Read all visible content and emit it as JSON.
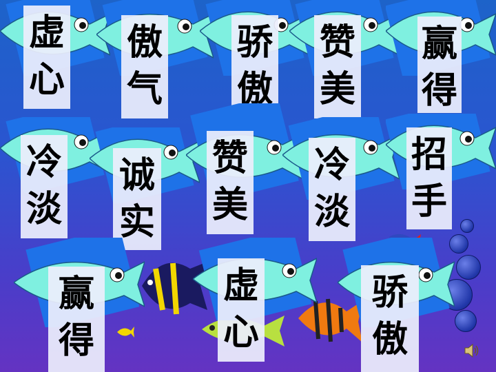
{
  "slide": {
    "cards": [
      {
        "id": "xuxin-1",
        "chars": [
          "虚",
          "心"
        ]
      },
      {
        "id": "aoqi",
        "chars": [
          "傲",
          "气"
        ]
      },
      {
        "id": "jiaoao-1",
        "chars": [
          "骄",
          "傲"
        ]
      },
      {
        "id": "zanmei-1",
        "chars": [
          "赞",
          "美"
        ]
      },
      {
        "id": "yingde-1",
        "chars": [
          "赢",
          "得"
        ]
      },
      {
        "id": "lengdan-1",
        "chars": [
          "冷",
          "淡"
        ]
      },
      {
        "id": "chengshi",
        "chars": [
          "诚",
          "实"
        ]
      },
      {
        "id": "zanmei-2",
        "chars": [
          "赞",
          "美"
        ]
      },
      {
        "id": "lengdan-2",
        "chars": [
          "冷",
          "淡"
        ]
      },
      {
        "id": "zhaoshou",
        "chars": [
          "招",
          "手"
        ]
      },
      {
        "id": "yingde-2",
        "chars": [
          "赢",
          "得"
        ]
      },
      {
        "id": "xuxin-2",
        "chars": [
          "虚",
          "心"
        ]
      },
      {
        "id": "jiaoao-2",
        "chars": [
          "骄",
          "傲"
        ]
      }
    ],
    "icons": {
      "fish": "fish-icon",
      "speaker": "speaker-icon"
    },
    "colors": {
      "fish_body": "#7ff0e0",
      "tile_bg": "#1e72e8",
      "card_bg": "#eceefc"
    }
  }
}
